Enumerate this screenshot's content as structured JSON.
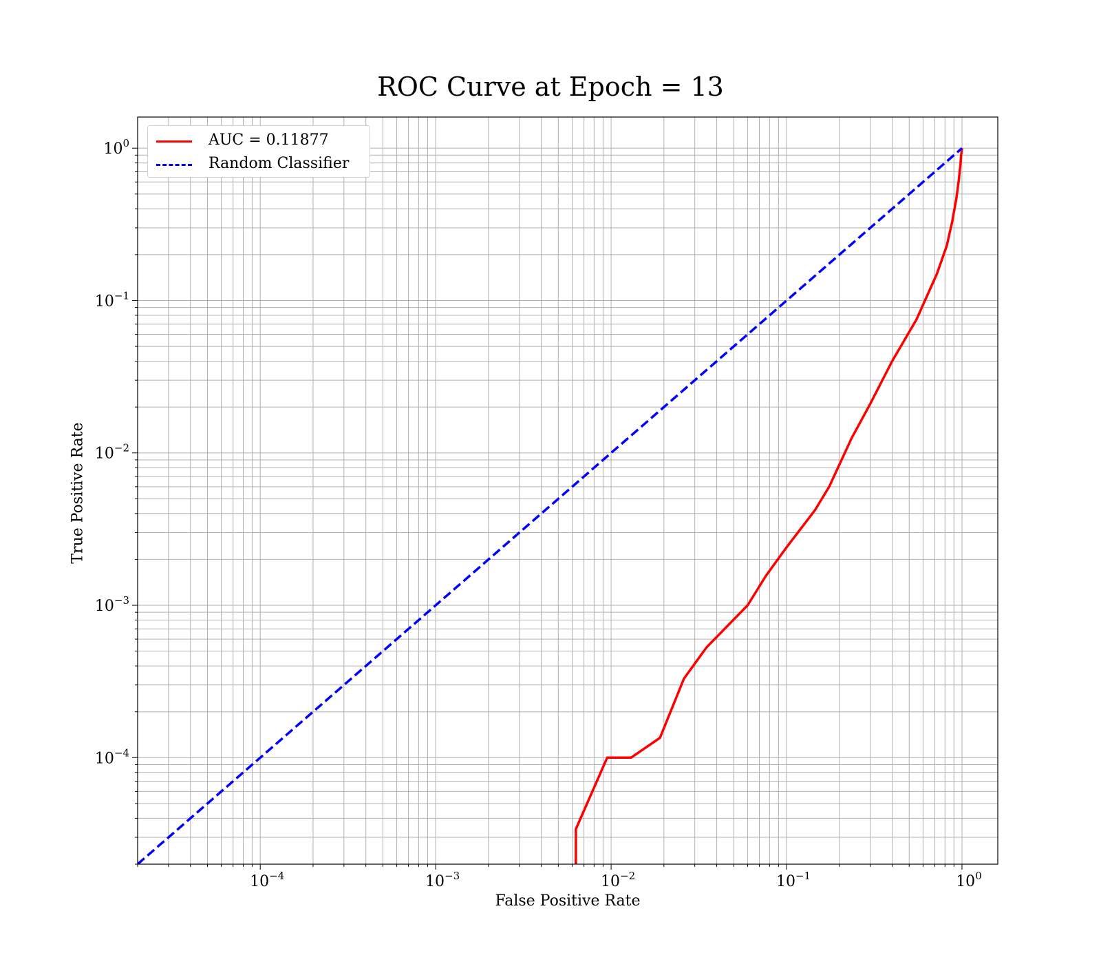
{
  "chart_data": {
    "type": "line",
    "title": "ROC Curve at Epoch = 13",
    "xlabel": "False Positive Rate",
    "ylabel": "True Positive Rate",
    "xscale": "log",
    "yscale": "log",
    "xlim": [
      2e-05,
      1.6
    ],
    "ylim": [
      2e-05,
      1.6
    ],
    "grid": true,
    "legend_position": "top-left",
    "x_ticks": [
      {
        "value": 0.0001,
        "label": "10",
        "exp": "−4"
      },
      {
        "value": 0.001,
        "label": "10",
        "exp": "−3"
      },
      {
        "value": 0.01,
        "label": "10",
        "exp": "−2"
      },
      {
        "value": 0.1,
        "label": "10",
        "exp": "−1"
      },
      {
        "value": 1,
        "label": "10",
        "exp": "0"
      }
    ],
    "y_ticks": [
      {
        "value": 0.0001,
        "label": "10",
        "exp": "−4"
      },
      {
        "value": 0.001,
        "label": "10",
        "exp": "−3"
      },
      {
        "value": 0.01,
        "label": "10",
        "exp": "−2"
      },
      {
        "value": 0.1,
        "label": "10",
        "exp": "−1"
      },
      {
        "value": 1,
        "label": "10",
        "exp": "0"
      }
    ],
    "series": [
      {
        "name": "AUC = 0.11877",
        "color": "#ff0000",
        "style": "solid",
        "x": [
          0.0063,
          0.0063,
          0.0095,
          0.013,
          0.019,
          0.026,
          0.035,
          0.06,
          0.076,
          0.1,
          0.145,
          0.175,
          0.235,
          0.3,
          0.4,
          0.55,
          0.72,
          0.82,
          0.88,
          0.93,
          0.96,
          0.98,
          0.99,
          1.0
        ],
        "y": [
          2e-05,
          3.4e-05,
          0.0001,
          0.0001,
          0.000135,
          0.00033,
          0.00053,
          0.001,
          0.00155,
          0.0024,
          0.0042,
          0.006,
          0.0125,
          0.021,
          0.04,
          0.075,
          0.15,
          0.23,
          0.33,
          0.47,
          0.62,
          0.78,
          0.9,
          1.0
        ]
      },
      {
        "name": "Random Classifier",
        "color": "#0000ff",
        "style": "dashed",
        "x": [
          2e-05,
          1.0
        ],
        "y": [
          2e-05,
          1.0
        ]
      }
    ]
  }
}
